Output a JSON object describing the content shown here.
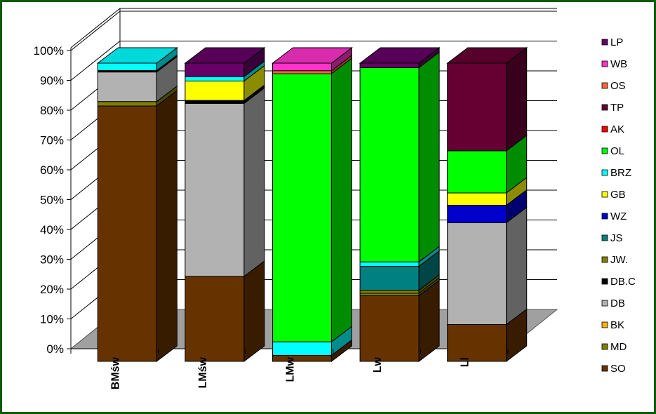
{
  "chart_data": {
    "type": "bar",
    "stacked": true,
    "percent": true,
    "three_d": true,
    "categories": [
      "BMśw",
      "LMśw",
      "LMw",
      "Lw",
      "Ll"
    ],
    "ylim": [
      0,
      100
    ],
    "yticks": [
      "0%",
      "10%",
      "20%",
      "30%",
      "40%",
      "50%",
      "60%",
      "70%",
      "80%",
      "90%",
      "100%"
    ],
    "grid": true,
    "legend_position": "right",
    "series": [
      {
        "name": "SO",
        "color": "#663300",
        "values": [
          86.5,
          28.5,
          2,
          22,
          10.5
        ]
      },
      {
        "name": "MD",
        "color": "#808000",
        "values": [
          1.5,
          0,
          0,
          0.8,
          0
        ]
      },
      {
        "name": "BK",
        "color": "#ffb200",
        "values": [
          0,
          0,
          0,
          0,
          0
        ]
      },
      {
        "name": "DB",
        "color": "#b2b2b2",
        "values": [
          10,
          58,
          0,
          0,
          29
        ]
      },
      {
        "name": "DB.C",
        "color": "#000000",
        "values": [
          0.5,
          1,
          0,
          0,
          0
        ]
      },
      {
        "name": "JW.",
        "color": "#808000",
        "values": [
          0,
          0,
          0,
          1,
          0
        ]
      },
      {
        "name": "JS",
        "color": "#008080",
        "values": [
          0,
          0,
          0,
          8,
          0
        ]
      },
      {
        "name": "WZ",
        "color": "#0000cc",
        "values": [
          0,
          0,
          0,
          0,
          5
        ]
      },
      {
        "name": "GB",
        "color": "#ffff00",
        "values": [
          0,
          6.5,
          0,
          0,
          3.5
        ]
      },
      {
        "name": "BRZ",
        "color": "#00ffff",
        "values": [
          2.5,
          1.5,
          4.5,
          1.5,
          0
        ]
      },
      {
        "name": "OL",
        "color": "#00ff00",
        "values": [
          0,
          0,
          89,
          65,
          12
        ]
      },
      {
        "name": "AK",
        "color": "#ff0000",
        "values": [
          0,
          0,
          0,
          0,
          0
        ]
      },
      {
        "name": "TP",
        "color": "#660033",
        "values": [
          0,
          0,
          0,
          0,
          25
        ]
      },
      {
        "name": "OS",
        "color": "#ff6633",
        "values": [
          0,
          0,
          1,
          0,
          0
        ]
      },
      {
        "name": "WB",
        "color": "#ff33cc",
        "values": [
          0,
          0,
          2.5,
          0,
          0
        ]
      },
      {
        "name": "LP",
        "color": "#660066",
        "values": [
          0,
          4.5,
          0,
          1.5,
          0
        ]
      }
    ],
    "legend_order": [
      "LP",
      "WB",
      "OS",
      "TP",
      "AK",
      "OL",
      "BRZ",
      "GB",
      "WZ",
      "JS",
      "JW.",
      "DB.C",
      "DB",
      "BK",
      "MD",
      "SO"
    ]
  }
}
